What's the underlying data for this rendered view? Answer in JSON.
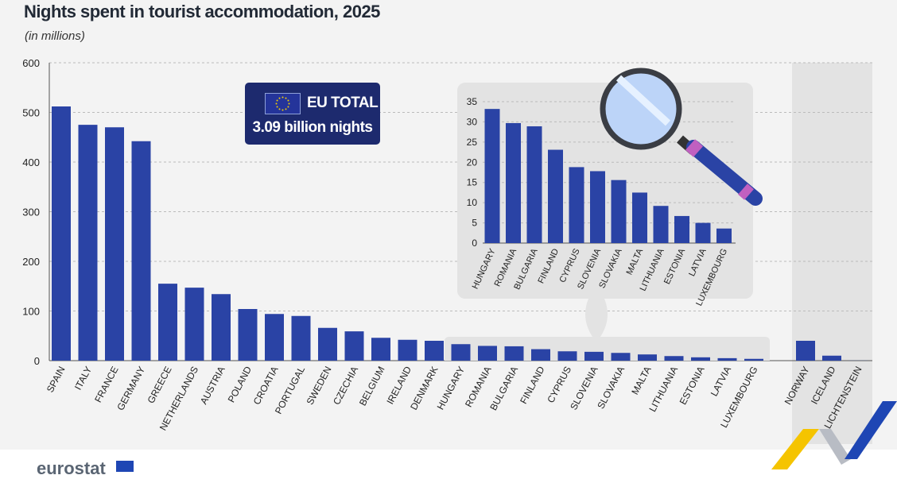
{
  "title": "Nights spent in tourist accommodation, 2025",
  "subtitle": "(in millions)",
  "eu_box": {
    "label": "EU TOTAL",
    "value": "3.09 billion nights"
  },
  "logo": "eurostat",
  "colors": {
    "bar": "#2a43a5",
    "background": "#f3f3f3",
    "inset_panel": "#e3e3e3",
    "non_eu_panel": "#e3e3e3",
    "eu_box": "#1d2a6e"
  },
  "chart_data": [
    {
      "type": "bar",
      "title": "Nights spent in tourist accommodation, 2025",
      "ylabel": "(in millions)",
      "ylim": [
        0,
        600
      ],
      "yticks": [
        0,
        100,
        200,
        300,
        400,
        500,
        600
      ],
      "grid": true,
      "categories": [
        "SPAIN",
        "ITALY",
        "FRANCE",
        "GERMANY",
        "GREECE",
        "NETHERLANDS",
        "AUSTRIA",
        "POLAND",
        "CROATIA",
        "PORTUGAL",
        "SWEDEN",
        "CZECHIA",
        "BELGIUM",
        "IRELAND",
        "DENMARK",
        "HUNGARY",
        "ROMANIA",
        "BULGARIA",
        "FINLAND",
        "CYPRUS",
        "SLOVENIA",
        "SLOVAKIA",
        "MALTA",
        "LITHUANIA",
        "ESTONIA",
        "LATVIA",
        "LUXEMBOURG",
        "NORWAY",
        "ICELAND",
        "LICHTENSTEIN"
      ],
      "values": [
        512,
        475,
        470,
        442,
        155,
        147,
        134,
        104,
        94,
        90,
        66,
        59,
        46,
        42,
        40,
        33.2,
        29.7,
        28.9,
        23.1,
        18.8,
        17.8,
        15.6,
        12.5,
        9.2,
        6.7,
        5.0,
        3.6,
        40,
        10,
        0.2
      ]
    },
    {
      "type": "bar",
      "title": "",
      "ylim": [
        0,
        35
      ],
      "yticks": [
        0,
        5,
        10,
        15,
        20,
        25,
        30,
        35
      ],
      "grid": true,
      "categories": [
        "HUNGARY",
        "ROMANIA",
        "BULGARIA",
        "FINLAND",
        "CYPRUS",
        "SLOVENIA",
        "SLOVAKIA",
        "MALTA",
        "LITHUANIA",
        "ESTONIA",
        "LATVIA",
        "LUXEMBOURG"
      ],
      "values": [
        33.2,
        29.7,
        28.9,
        23.1,
        18.8,
        17.8,
        15.6,
        12.5,
        9.2,
        6.7,
        5.0,
        3.6
      ]
    }
  ]
}
